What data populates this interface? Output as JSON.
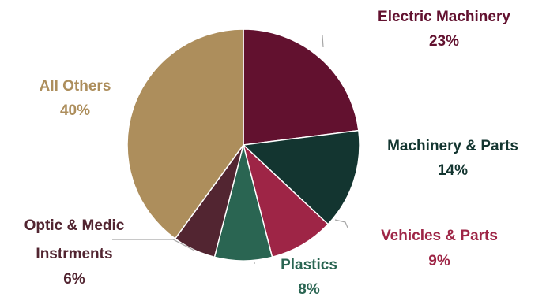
{
  "chart_data": {
    "type": "pie",
    "title": "",
    "start_angle_deg": 0,
    "direction": "clockwise",
    "slices": [
      {
        "label": "Electric Machinery",
        "value": 23,
        "value_label": "23%",
        "color": "#62112F"
      },
      {
        "label": "Machinery & Parts",
        "value": 14,
        "value_label": "14%",
        "color": "#133530"
      },
      {
        "label": "Vehicles & Parts",
        "value": 9,
        "value_label": "9%",
        "color": "#9E2546"
      },
      {
        "label": "Plastics",
        "value": 8,
        "value_label": "8%",
        "color": "#2A6552"
      },
      {
        "label": "Optic & Medic Instrments",
        "value": 6,
        "value_label": "6%",
        "color": "#522531"
      },
      {
        "label": "All Others",
        "value": 40,
        "value_label": "40%",
        "color": "#AD8E5C"
      }
    ],
    "label_colors": {
      "Electric Machinery": "#62112F",
      "Machinery & Parts": "#133530",
      "Vehicles & Parts": "#9E2546",
      "Plastics": "#2A6552",
      "Optic & Medic Instrments": "#522531",
      "All Others": "#AD8E5C"
    },
    "legend": "none"
  }
}
